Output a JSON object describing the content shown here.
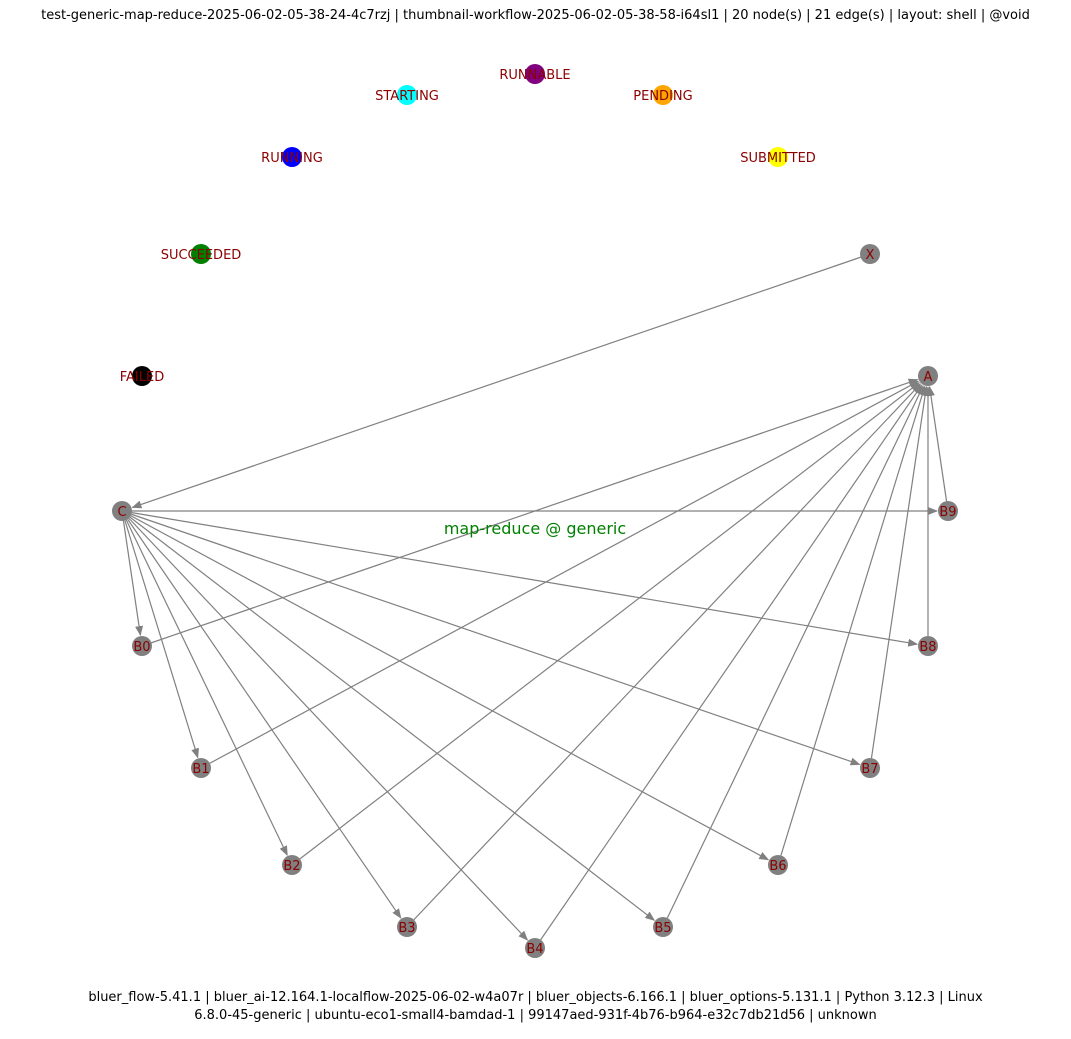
{
  "header": {
    "text": "test-generic-map-reduce-2025-06-02-05-38-24-4c7rzj | thumbnail-workflow-2025-06-02-05-38-58-i64sl1 | 20 node(s) | 21 edge(s) | layout: shell | @void"
  },
  "footer": {
    "line1": "bluer_flow-5.41.1 | bluer_ai-12.164.1-localflow-2025-06-02-w4a07r | bluer_objects-6.166.1 | bluer_options-5.131.1 | Python 3.12.3 | Linux",
    "line2": "6.8.0-45-generic | ubuntu-eco1-small4-bamdad-1 | 99147aed-931f-4b76-b964-e32c7db21d56 | unknown"
  },
  "diagram": {
    "caption": "map-reduce @ generic",
    "caption_color": "#008000",
    "label_color": "#8b0000",
    "edge_color": "#808080",
    "legend_nodes": [
      {
        "id": "RUNNABLE",
        "color": "#800080"
      },
      {
        "id": "STARTING",
        "color": "#00ffff"
      },
      {
        "id": "PENDING",
        "color": "#ffa500"
      },
      {
        "id": "RUNNING",
        "color": "#0000ff"
      },
      {
        "id": "SUBMITTED",
        "color": "#ffff00"
      },
      {
        "id": "SUCCEEDED",
        "color": "#008000"
      },
      {
        "id": "FAILED",
        "color": "#000000"
      }
    ],
    "workflow_nodes": [
      {
        "id": "X",
        "color": "#808080"
      },
      {
        "id": "A",
        "color": "#808080"
      },
      {
        "id": "C",
        "color": "#808080"
      },
      {
        "id": "B0",
        "color": "#808080"
      },
      {
        "id": "B1",
        "color": "#808080"
      },
      {
        "id": "B2",
        "color": "#808080"
      },
      {
        "id": "B3",
        "color": "#808080"
      },
      {
        "id": "B4",
        "color": "#808080"
      },
      {
        "id": "B5",
        "color": "#808080"
      },
      {
        "id": "B6",
        "color": "#808080"
      },
      {
        "id": "B7",
        "color": "#808080"
      },
      {
        "id": "B8",
        "color": "#808080"
      },
      {
        "id": "B9",
        "color": "#808080"
      }
    ],
    "edges": [
      [
        "X",
        "C"
      ],
      [
        "C",
        "B0"
      ],
      [
        "C",
        "B1"
      ],
      [
        "C",
        "B2"
      ],
      [
        "C",
        "B3"
      ],
      [
        "C",
        "B4"
      ],
      [
        "C",
        "B5"
      ],
      [
        "C",
        "B6"
      ],
      [
        "C",
        "B7"
      ],
      [
        "C",
        "B8"
      ],
      [
        "C",
        "B9"
      ],
      [
        "B0",
        "A"
      ],
      [
        "B1",
        "A"
      ],
      [
        "B2",
        "A"
      ],
      [
        "B3",
        "A"
      ],
      [
        "B4",
        "A"
      ],
      [
        "B5",
        "A"
      ],
      [
        "B6",
        "A"
      ],
      [
        "B7",
        "A"
      ],
      [
        "B8",
        "A"
      ],
      [
        "B9",
        "A"
      ]
    ]
  }
}
